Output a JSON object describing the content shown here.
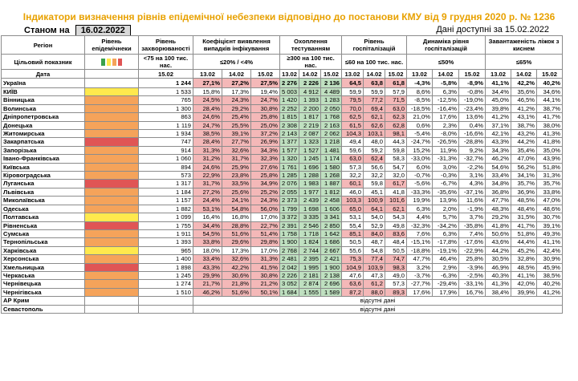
{
  "title": "Індикатори визначення рівнів епідемічної небезпеки відповідно до постанови КМУ від 9 грудня 2020 р. № 1236",
  "status_label": "Станом на",
  "status_date": "16.02.2022",
  "data_available": "Дані доступні за 15.02.2022",
  "headers": {
    "region": "Регіон",
    "level": "Рівень епідемічнеки",
    "incidence": "Рівень захворюваності",
    "detection": "Коефіцієнт виявлення випадків інфікування",
    "testing": "Охоплення тестуванням",
    "hosp": "Рівень госпіталізацій",
    "dynamics": "Динаміка рівня госпіталізацій",
    "beds": "Завантаженість ліжок з киснем",
    "target_label": "Цільовий показник",
    "target_incidence": "<75 на 100 тис. нас.",
    "target_detection": "≤20% / <4%",
    "target_testing": "≥300 на 100 тис. нас.",
    "target_hosp": "≤60 на 100 тис. нас.",
    "target_dynamics": "≤50%",
    "target_beds": "≤65%",
    "date_label": "Дата",
    "date_incidence": "15.02",
    "dates": [
      "13.02",
      "14.02",
      "15.02"
    ]
  },
  "colors": {
    "level_green": "#3aa14a",
    "level_yellow": "#ffe94d",
    "level_orange": "#f5a35a",
    "level_red": "#e05555",
    "cell_red": "#f4b8b8",
    "cell_green": "#bfe0c0",
    "title": "#e8a100"
  },
  "no_data_text": "відсутні дані",
  "rows": [
    {
      "name": "Україна",
      "level": "",
      "incidence": "1 244",
      "detection": [
        "27,1%",
        "27,2%",
        "27,5%"
      ],
      "testing": [
        "2 276",
        "2 226",
        "2 136"
      ],
      "hosp": [
        "64,5",
        "63,8",
        "61,8"
      ],
      "dynamics": [
        "-4,3%",
        "-5,8%",
        "-8,9%"
      ],
      "beds": [
        "41,1%",
        "42,2%",
        "40,2%"
      ],
      "ukraine": true
    },
    {
      "name": "КИЇВ",
      "level": "yellow",
      "incidence": "1 533",
      "detection": [
        "15,8%",
        "17,3%",
        "19,4%"
      ],
      "testing": [
        "5 003",
        "4 912",
        "4 489"
      ],
      "hosp": [
        "59,9",
        "59,9",
        "57,9"
      ],
      "dynamics": [
        "8,6%",
        "6,3%",
        "-0,8%"
      ],
      "beds": [
        "34,4%",
        "35,6%",
        "34,6%"
      ]
    },
    {
      "name": "Вінницька",
      "level": "orange",
      "incidence": "765",
      "detection": [
        "24,5%",
        "24,3%",
        "24,7%"
      ],
      "testing": [
        "1 420",
        "1 393",
        "1 283"
      ],
      "hosp": [
        "79,5",
        "77,2",
        "71,5"
      ],
      "dynamics": [
        "-8,5%",
        "-12,5%",
        "-19,0%"
      ],
      "beds": [
        "45,0%",
        "46,5%",
        "44,1%"
      ]
    },
    {
      "name": "Волинська",
      "level": "orange",
      "incidence": "1 300",
      "detection": [
        "28,4%",
        "29,2%",
        "30,8%"
      ],
      "testing": [
        "2 252",
        "2 200",
        "2 050"
      ],
      "hosp": [
        "70,0",
        "69,4",
        "63,0"
      ],
      "dynamics": [
        "-18,5%",
        "-16,4%",
        "-23,4%"
      ],
      "beds": [
        "39,8%",
        "41,2%",
        "38,7%"
      ]
    },
    {
      "name": "Дніпропетровська",
      "level": "orange",
      "incidence": "863",
      "detection": [
        "24,6%",
        "25,4%",
        "25,8%"
      ],
      "testing": [
        "1 815",
        "1 817",
        "1 768"
      ],
      "hosp": [
        "62,5",
        "62,1",
        "62,3"
      ],
      "dynamics": [
        "21,0%",
        "17,6%",
        "13,6%"
      ],
      "beds": [
        "41,2%",
        "43,1%",
        "41,7%"
      ]
    },
    {
      "name": "Донецька",
      "level": "orange",
      "incidence": "1 119",
      "detection": [
        "24,7%",
        "25,5%",
        "25,0%"
      ],
      "testing": [
        "2 308",
        "2 219",
        "2 163"
      ],
      "hosp": [
        "61,5",
        "62,6",
        "62,8"
      ],
      "dynamics": [
        "0,6%",
        "2,3%",
        "0,4%"
      ],
      "beds": [
        "37,1%",
        "38,7%",
        "38,0%"
      ]
    },
    {
      "name": "Житомирська",
      "level": "orange",
      "incidence": "1 934",
      "detection": [
        "38,5%",
        "39,1%",
        "37,2%"
      ],
      "testing": [
        "2 143",
        "2 087",
        "2 062"
      ],
      "hosp": [
        "104,3",
        "103,1",
        "98,1"
      ],
      "dynamics": [
        "-5,4%",
        "-8,0%",
        "-16,6%"
      ],
      "beds": [
        "42,1%",
        "43,2%",
        "41,3%"
      ]
    },
    {
      "name": "Закарпатська",
      "level": "red",
      "incidence": "747",
      "detection": [
        "28,4%",
        "27,7%",
        "26,9%"
      ],
      "testing": [
        "1 377",
        "1 323",
        "1 218"
      ],
      "hosp": [
        "49,4",
        "48,0",
        "44,3"
      ],
      "dynamics": [
        "-24,7%",
        "-26,5%",
        "-28,8%"
      ],
      "beds": [
        "43,3%",
        "44,2%",
        "41,8%"
      ]
    },
    {
      "name": "Запорізька",
      "level": "orange",
      "incidence": "914",
      "detection": [
        "31,3%",
        "32,6%",
        "34,3%"
      ],
      "testing": [
        "1 577",
        "1 527",
        "1 481"
      ],
      "hosp": [
        "59,6",
        "59,2",
        "59,8"
      ],
      "dynamics": [
        "15,2%",
        "11,9%",
        "9,2%"
      ],
      "beds": [
        "34,3%",
        "35,4%",
        "35,0%"
      ]
    },
    {
      "name": "Івано-Франківська",
      "level": "orange",
      "incidence": "1 060",
      "detection": [
        "31,2%",
        "31,7%",
        "32,3%"
      ],
      "testing": [
        "1 320",
        "1 245",
        "1 174"
      ],
      "hosp": [
        "63,0",
        "62,4",
        "58,3"
      ],
      "dynamics": [
        "-33,0%",
        "-31,3%",
        "-32,7%"
      ],
      "beds": [
        "46,2%",
        "47,0%",
        "43,9%"
      ]
    },
    {
      "name": "Київська",
      "level": "orange",
      "incidence": "894",
      "detection": [
        "24,6%",
        "25,9%",
        "27,6%"
      ],
      "testing": [
        "1 761",
        "1 696",
        "1 580"
      ],
      "hosp": [
        "57,3",
        "56,6",
        "54,7"
      ],
      "dynamics": [
        "6,0%",
        "3,0%",
        "-2,2%"
      ],
      "beds": [
        "54,6%",
        "56,2%",
        "51,8%"
      ]
    },
    {
      "name": "Кіровоградська",
      "level": "orange",
      "incidence": "573",
      "detection": [
        "22,9%",
        "23,8%",
        "25,8%"
      ],
      "testing": [
        "1 285",
        "1 288",
        "1 268"
      ],
      "hosp": [
        "32,2",
        "32,2",
        "32,0"
      ],
      "dynamics": [
        "-0,7%",
        "-0,3%",
        "3,1%"
      ],
      "beds": [
        "33,4%",
        "34,1%",
        "31,3%"
      ]
    },
    {
      "name": "Луганська",
      "level": "red",
      "incidence": "1 317",
      "detection": [
        "31,7%",
        "33,5%",
        "34,9%"
      ],
      "testing": [
        "2 076",
        "1 983",
        "1 887"
      ],
      "hosp": [
        "60,1",
        "59,8",
        "61,7"
      ],
      "dynamics": [
        "-5,6%",
        "-6,7%",
        "4,3%"
      ],
      "beds": [
        "34,8%",
        "35,7%",
        "35,7%"
      ]
    },
    {
      "name": "Львівська",
      "level": "orange",
      "incidence": "1 184",
      "detection": [
        "27,2%",
        "25,6%",
        "25,2%"
      ],
      "testing": [
        "2 055",
        "1 977",
        "1 812"
      ],
      "hosp": [
        "46,0",
        "45,1",
        "41,8"
      ],
      "dynamics": [
        "-33,3%",
        "-35,6%",
        "-37,1%"
      ],
      "beds": [
        "36,8%",
        "36,9%",
        "33,8%"
      ]
    },
    {
      "name": "Миколаївська",
      "level": "orange",
      "incidence": "1 157",
      "detection": [
        "24,4%",
        "24,1%",
        "24,3%"
      ],
      "testing": [
        "2 373",
        "2 439",
        "2 458"
      ],
      "hosp": [
        "103,3",
        "100,9",
        "101,6"
      ],
      "dynamics": [
        "19,9%",
        "13,9%",
        "11,6%"
      ],
      "beds": [
        "47,7%",
        "48,5%",
        "47,0%"
      ]
    },
    {
      "name": "Одеська",
      "level": "orange",
      "incidence": "1 882",
      "detection": [
        "53,1%",
        "54,8%",
        "56,0%"
      ],
      "testing": [
        "1 799",
        "1 698",
        "1 606"
      ],
      "hosp": [
        "65,0",
        "64,1",
        "62,1"
      ],
      "dynamics": [
        "6,3%",
        "2,0%",
        "-1,9%"
      ],
      "beds": [
        "48,3%",
        "48,4%",
        "48,6%"
      ]
    },
    {
      "name": "Полтавська",
      "level": "yellow",
      "incidence": "1 099",
      "detection": [
        "16,4%",
        "16,8%",
        "17,0%"
      ],
      "testing": [
        "3 372",
        "3 335",
        "3 341"
      ],
      "hosp": [
        "53,1",
        "54,0",
        "54,3"
      ],
      "dynamics": [
        "4,4%",
        "5,7%",
        "3,7%"
      ],
      "beds": [
        "29,2%",
        "31,5%",
        "30,7%"
      ]
    },
    {
      "name": "Рівненська",
      "level": "red",
      "incidence": "1 755",
      "detection": [
        "34,4%",
        "28,8%",
        "22,7%"
      ],
      "testing": [
        "2 391",
        "2 546",
        "2 850"
      ],
      "hosp": [
        "55,4",
        "52,9",
        "49,8"
      ],
      "dynamics": [
        "-32,3%",
        "-34,2%",
        "-35,8%"
      ],
      "beds": [
        "41,8%",
        "41,7%",
        "39,1%"
      ]
    },
    {
      "name": "Сумська",
      "level": "orange",
      "incidence": "1 911",
      "detection": [
        "54,5%",
        "51,6%",
        "51,4%"
      ],
      "testing": [
        "1 758",
        "1 718",
        "1 642"
      ],
      "hosp": [
        "85,1",
        "84,0",
        "83,6"
      ],
      "dynamics": [
        "7,6%",
        "6,3%",
        "7,4%"
      ],
      "beds": [
        "50,6%",
        "51,8%",
        "49,3%"
      ]
    },
    {
      "name": "Тернопільська",
      "level": "orange",
      "incidence": "1 393",
      "detection": [
        "33,8%",
        "29,6%",
        "29,8%"
      ],
      "testing": [
        "1 900",
        "1 824",
        "1 686"
      ],
      "hosp": [
        "50,5",
        "48,7",
        "48,4"
      ],
      "dynamics": [
        "-15,1%",
        "-17,8%",
        "-17,6%"
      ],
      "beds": [
        "43,6%",
        "44,4%",
        "41,1%"
      ]
    },
    {
      "name": "Харківська",
      "level": "yellow",
      "incidence": "965",
      "detection": [
        "18,0%",
        "17,3%",
        "17,0%"
      ],
      "testing": [
        "2 768",
        "2 744",
        "2 667"
      ],
      "hosp": [
        "55,6",
        "54,8",
        "50,5"
      ],
      "dynamics": [
        "-18,8%",
        "-19,1%",
        "-22,9%"
      ],
      "beds": [
        "44,2%",
        "45,2%",
        "42,4%"
      ]
    },
    {
      "name": "Херсонська",
      "level": "orange",
      "incidence": "1 400",
      "detection": [
        "33,4%",
        "32,6%",
        "31,3%"
      ],
      "testing": [
        "2 481",
        "2 395",
        "2 421"
      ],
      "hosp": [
        "75,3",
        "77,4",
        "74,7"
      ],
      "dynamics": [
        "47,7%",
        "46,4%",
        "25,8%"
      ],
      "beds": [
        "30,5%",
        "32,8%",
        "30,9%"
      ]
    },
    {
      "name": "Хмельницька",
      "level": "red",
      "incidence": "1 898",
      "detection": [
        "43,3%",
        "42,2%",
        "41,5%"
      ],
      "testing": [
        "2 042",
        "1 995",
        "1 900"
      ],
      "hosp": [
        "104,9",
        "103,9",
        "98,3"
      ],
      "dynamics": [
        "3,2%",
        "2,9%",
        "-3,9%"
      ],
      "beds": [
        "46,9%",
        "48,5%",
        "45,9%"
      ]
    },
    {
      "name": "Черкаська",
      "level": "orange",
      "incidence": "1 245",
      "detection": [
        "29,9%",
        "30,6%",
        "30,8%"
      ],
      "testing": [
        "2 226",
        "2 181",
        "2 138"
      ],
      "hosp": [
        "47,6",
        "47,3",
        "49,0"
      ],
      "dynamics": [
        "-3,7%",
        "-6,3%",
        "-2,5%"
      ],
      "beds": [
        "40,3%",
        "41,1%",
        "38,5%"
      ]
    },
    {
      "name": "Чернівецька",
      "level": "orange",
      "incidence": "1 274",
      "detection": [
        "21,7%",
        "21,8%",
        "21,2%"
      ],
      "testing": [
        "3 052",
        "2 874",
        "2 696"
      ],
      "hosp": [
        "63,6",
        "61,2",
        "57,3"
      ],
      "dynamics": [
        "-27,7%",
        "-29,4%",
        "-33,1%"
      ],
      "beds": [
        "41,3%",
        "42,0%",
        "40,2%"
      ]
    },
    {
      "name": "Чернігівська",
      "level": "orange",
      "incidence": "1 510",
      "detection": [
        "46,2%",
        "51,6%",
        "50,1%"
      ],
      "testing": [
        "1 684",
        "1 555",
        "1 589"
      ],
      "hosp": [
        "87,2",
        "88,0",
        "89,3"
      ],
      "dynamics": [
        "17,6%",
        "17,9%",
        "16,7%"
      ],
      "beds": [
        "38,4%",
        "39,9%",
        "41,2%"
      ]
    },
    {
      "name": "АР Крим",
      "nodata": true
    },
    {
      "name": "Севастополь",
      "nodata": true
    }
  ]
}
